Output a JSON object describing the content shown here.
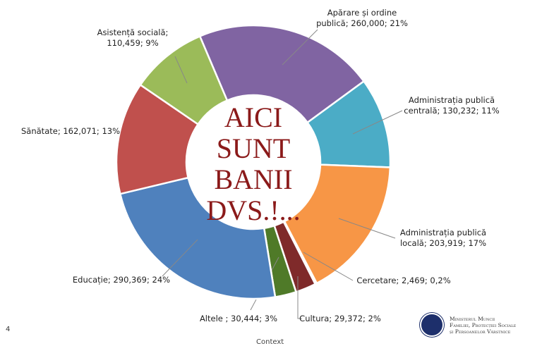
{
  "chart_data": {
    "type": "pie",
    "variant": "donut",
    "center_text": [
      "AICI",
      "SUNT",
      "BANII",
      "DVS.!..."
    ],
    "slices": [
      {
        "name": "Apărare și ordine publică",
        "value": 260000,
        "percent": "21%",
        "label": [
          "Apărare și ordine",
          "publică; 260,000; 21%"
        ],
        "color": "#8064a2"
      },
      {
        "name": "Administrația publică centrală",
        "value": 130232,
        "percent": "11%",
        "label": [
          "Administrația publică",
          "centrală; 130,232; 11%"
        ],
        "color": "#4bacc6"
      },
      {
        "name": "Administrația publică locală",
        "value": 203919,
        "percent": "17%",
        "label": [
          "Administrația publică",
          "locală; 203,919; 17%"
        ],
        "color": "#f79646"
      },
      {
        "name": "Cercetare",
        "value": 2469,
        "percent": "0,2%",
        "label": [
          "Cercetare; 2,469; 0,2%"
        ],
        "color": "#c0504d"
      },
      {
        "name": "Cultura",
        "value": 29372,
        "percent": "2%",
        "label": [
          "Cultura; 29,372; 2%"
        ],
        "color": "#7f2a2a"
      },
      {
        "name": "Altele",
        "value": 30444,
        "percent": "3%",
        "label": [
          "Altele ; 30,444; 3%"
        ],
        "color": "#4f7a28"
      },
      {
        "name": "Educație",
        "value": 290369,
        "percent": "24%",
        "label": [
          "Educație; 290,369; 24%"
        ],
        "color": "#4f81bd"
      },
      {
        "name": "Sănătate",
        "value": 162071,
        "percent": "13%",
        "label": [
          "Sănătate; 162,071; 13%"
        ],
        "color": "#c0504d"
      },
      {
        "name": "Asistență socială",
        "value": 110459,
        "percent": "9%",
        "label": [
          "Asistență socială;",
          "110,459; 9%"
        ],
        "color": "#9bbb59"
      }
    ]
  },
  "footer": {
    "page_number": "4",
    "context": "Context",
    "ministry": [
      "Ministerul Muncii",
      "Familiei, Protecției Sociale",
      "și Persoanelor Vârstnice"
    ]
  }
}
